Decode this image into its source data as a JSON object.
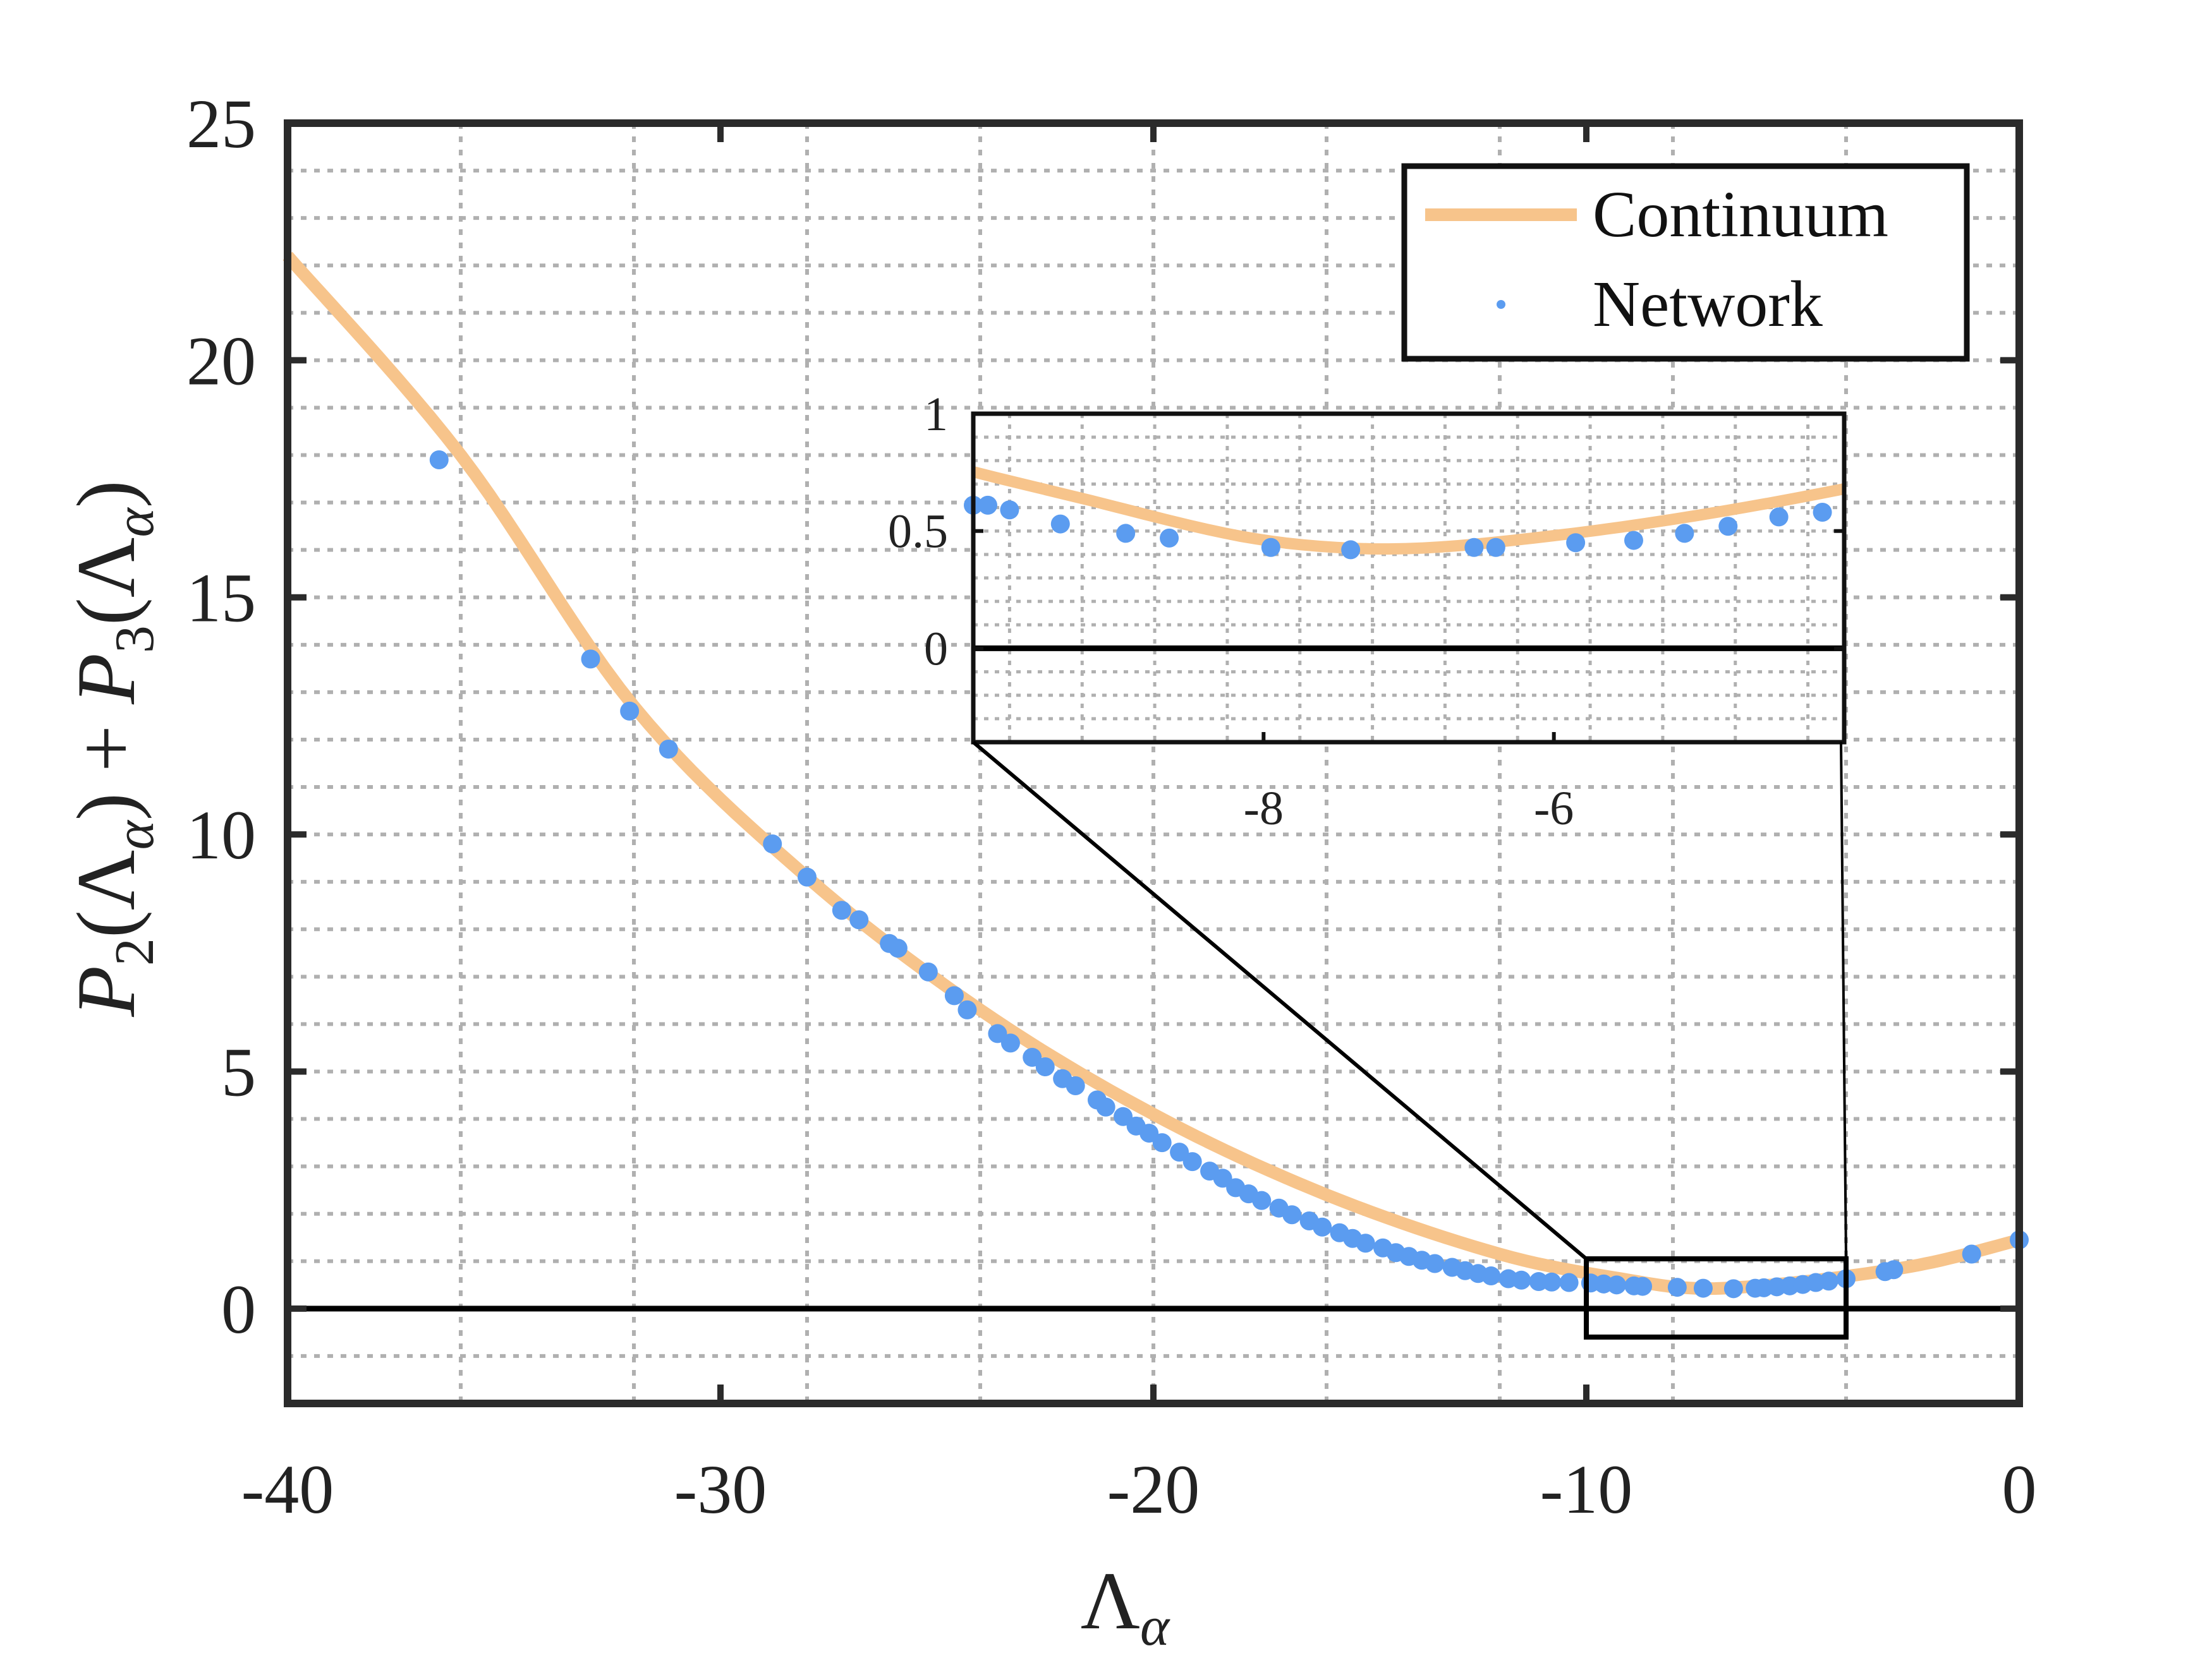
{
  "colors": {
    "continuum": "#F7C48B",
    "network": "#5B9CF0",
    "frame": "#2b2b2b",
    "grid": "#b0b0b0"
  },
  "chart_data": {
    "type": "line",
    "xlabel": {
      "base": "Λ",
      "sub": "α"
    },
    "ylabel": "P2(Λα) + P3(Λα)",
    "xlim": [
      -40,
      0
    ],
    "ylim": [
      -2,
      25
    ],
    "x_ticks": [
      -40,
      -30,
      -20,
      -10,
      0
    ],
    "y_ticks": [
      0,
      5,
      10,
      15,
      20,
      25
    ],
    "x_tick_labels": [
      "-40",
      "-30",
      "-20",
      "-10",
      "0"
    ],
    "y_tick_labels": [
      "0",
      "5",
      "10",
      "15",
      "20",
      "25"
    ],
    "grid": true,
    "zero_line": true,
    "legend": {
      "position": "top-right",
      "entries": [
        "Continuum",
        "Network"
      ]
    },
    "series": [
      {
        "name": "Continuum",
        "kind": "curve",
        "x": [
          -40,
          -36,
          -32,
          -28,
          -24,
          -20,
          -16,
          -12,
          -9,
          -7.5,
          -6,
          -4,
          -2,
          0
        ],
        "y": [
          22.2,
          18.0,
          12.7,
          9.1,
          6.3,
          4.1,
          2.4,
          1.15,
          0.6,
          0.43,
          0.48,
          0.68,
          0.98,
          1.45
        ]
      },
      {
        "name": "Network",
        "kind": "markers",
        "x": [
          -36.5,
          -33,
          -32.1,
          -31.2,
          -28.8,
          -28,
          -27.2,
          -26.8,
          -26.1,
          -25.9,
          -25.2,
          -24.6,
          -24.3,
          -23.6,
          -23.3,
          -22.8,
          -22.5,
          -22.1,
          -21.8,
          -21.3,
          -21.1,
          -20.7,
          -20.4,
          -20.1,
          -19.8,
          -19.4,
          -19.1,
          -18.7,
          -18.4,
          -18.1,
          -17.8,
          -17.5,
          -17.1,
          -16.8,
          -16.4,
          -16.1,
          -15.7,
          -15.4,
          -15.1,
          -14.7,
          -14.4,
          -14.1,
          -13.8,
          -13.5,
          -13.1,
          -12.8,
          -12.5,
          -12.2,
          -11.8,
          -11.5,
          -11.1,
          -10.8,
          -10.4,
          -9.9,
          -9.6,
          -9.3,
          -8.9,
          -8.7,
          -7.9,
          -7.3,
          -6.6,
          -6.1,
          -5.9,
          -5.6,
          -5.3,
          -5.0,
          -4.7,
          -4.4,
          -4.0,
          -3.1,
          -2.9,
          -1.1,
          0
        ],
        "y": [
          17.9,
          13.7,
          12.6,
          11.8,
          9.8,
          9.1,
          8.4,
          8.2,
          7.7,
          7.6,
          7.1,
          6.6,
          6.3,
          5.8,
          5.6,
          5.3,
          5.1,
          4.85,
          4.7,
          4.4,
          4.25,
          4.05,
          3.85,
          3.7,
          3.5,
          3.3,
          3.1,
          2.9,
          2.75,
          2.55,
          2.42,
          2.28,
          2.12,
          1.98,
          1.85,
          1.72,
          1.6,
          1.48,
          1.38,
          1.28,
          1.18,
          1.1,
          1.02,
          0.95,
          0.87,
          0.8,
          0.74,
          0.69,
          0.63,
          0.6,
          0.57,
          0.56,
          0.55,
          0.54,
          0.52,
          0.5,
          0.48,
          0.47,
          0.45,
          0.43,
          0.42,
          0.43,
          0.44,
          0.46,
          0.48,
          0.51,
          0.55,
          0.58,
          0.63,
          0.78,
          0.82,
          1.15,
          1.45
        ]
      }
    ],
    "inset": {
      "xlim": [
        -10,
        -4
      ],
      "ylim": [
        -0.4,
        1
      ],
      "x_ticks": [
        -8,
        -6
      ],
      "y_ticks": [
        0,
        0.5,
        1
      ],
      "x_tick_labels": [
        "-8",
        "-6"
      ],
      "y_tick_labels": [
        "0",
        "0.5",
        "1"
      ],
      "zoom_box": {
        "x": [
          -10,
          -4
        ],
        "y": [
          -0.6,
          1.05
        ]
      },
      "network_x": [
        -10,
        -9.9,
        -9.75,
        -9.4,
        -8.95,
        -8.65,
        -7.95,
        -7.4,
        -6.55,
        -6.4,
        -5.85,
        -5.45,
        -5.1,
        -4.8,
        -4.45,
        -4.15
      ],
      "network_y": [
        0.61,
        0.61,
        0.59,
        0.53,
        0.49,
        0.47,
        0.43,
        0.42,
        0.43,
        0.43,
        0.45,
        0.46,
        0.49,
        0.52,
        0.56,
        0.58
      ]
    }
  }
}
